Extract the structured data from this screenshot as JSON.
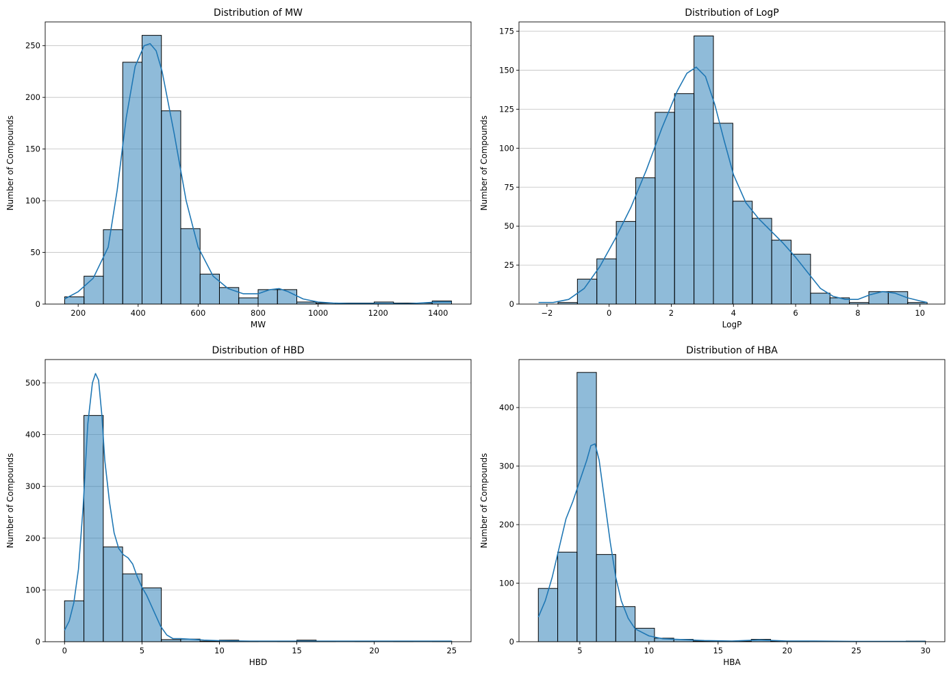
{
  "chart_data": [
    {
      "type": "bar",
      "title": "Distribution of MW",
      "xlabel": "MW",
      "ylabel": "Number of Compounds",
      "xlim": [
        90,
        1510
      ],
      "ylim": [
        0,
        273
      ],
      "xticks": [
        200,
        400,
        600,
        800,
        1000,
        1200,
        1400
      ],
      "yticks": [
        0,
        50,
        100,
        150,
        200,
        250
      ],
      "grid": "y",
      "bin_edges": [
        155,
        219.5,
        284,
        348.5,
        413,
        477.5,
        542,
        606.5,
        671,
        735.5,
        800,
        864.5,
        929,
        993.5,
        1058,
        1122.5,
        1187,
        1251.5,
        1316,
        1380.5,
        1445
      ],
      "counts": [
        7,
        27,
        72,
        234,
        260,
        187,
        73,
        29,
        16,
        6,
        14,
        14,
        2,
        1,
        1,
        1,
        2,
        1,
        1,
        3
      ],
      "kde": {
        "x": [
          155,
          200,
          250,
          300,
          330,
          360,
          390,
          420,
          440,
          460,
          480,
          520,
          560,
          600,
          650,
          700,
          750,
          800,
          840,
          870,
          900,
          950,
          1000,
          1050,
          1100,
          1200,
          1300,
          1400,
          1445
        ],
        "y": [
          5,
          12,
          25,
          55,
          110,
          180,
          230,
          250,
          252,
          245,
          225,
          165,
          100,
          55,
          27,
          15,
          10,
          10,
          14,
          15,
          12,
          5,
          2,
          1,
          0.5,
          0.5,
          0.3,
          2,
          2
        ]
      }
    },
    {
      "type": "bar",
      "title": "Distribution of LogP",
      "xlabel": "LogP",
      "ylabel": "Number of Compounds",
      "xlim": [
        -2.9,
        10.8
      ],
      "ylim": [
        0,
        181
      ],
      "xticks": [
        -2,
        0,
        2,
        4,
        6,
        8,
        10
      ],
      "yticks": [
        0,
        25,
        50,
        75,
        100,
        125,
        150,
        175
      ],
      "grid": "y",
      "bin_edges": [
        -2.27,
        -1.645,
        -1.02,
        -0.395,
        0.23,
        0.855,
        1.48,
        2.105,
        2.73,
        3.355,
        3.98,
        4.605,
        5.23,
        5.855,
        6.48,
        7.105,
        7.73,
        8.355,
        8.98,
        9.605,
        10.23
      ],
      "counts": [
        0,
        1,
        16,
        29,
        53,
        81,
        123,
        135,
        172,
        116,
        66,
        55,
        41,
        32,
        7,
        4,
        1,
        8,
        8,
        1
      ],
      "kde": {
        "x": [
          -2.27,
          -1.8,
          -1.3,
          -0.8,
          -0.3,
          0.2,
          0.7,
          1.2,
          1.7,
          2.2,
          2.5,
          2.8,
          3.1,
          3.4,
          3.7,
          4.0,
          4.4,
          4.8,
          5.2,
          5.6,
          6.0,
          6.4,
          6.8,
          7.2,
          7.6,
          8.0,
          8.4,
          8.8,
          9.2,
          9.6,
          10.0,
          10.23
        ],
        "y": [
          1,
          1,
          3,
          10,
          24,
          42,
          62,
          86,
          113,
          137,
          148,
          152,
          146,
          128,
          105,
          83,
          65,
          55,
          47,
          39,
          30,
          20,
          10,
          5,
          3,
          3,
          6,
          8,
          7,
          4,
          2,
          1
        ]
      }
    },
    {
      "type": "bar",
      "title": "Distribution of HBD",
      "xlabel": "HBD",
      "ylabel": "Number of Compounds",
      "xlim": [
        -1.25,
        26.25
      ],
      "ylim": [
        0,
        545
      ],
      "xticks": [
        0,
        5,
        10,
        15,
        20,
        25
      ],
      "yticks": [
        0,
        100,
        200,
        300,
        400,
        500
      ],
      "grid": "y",
      "bin_edges": [
        0,
        1.25,
        2.5,
        3.75,
        5,
        6.25,
        7.5,
        8.75,
        10,
        11.25,
        12.5,
        13.75,
        15,
        16.25,
        17.5,
        18.75,
        20,
        21.25,
        22.5,
        23.75,
        25
      ],
      "counts": [
        79,
        437,
        183,
        131,
        104,
        4,
        5,
        1,
        3,
        1,
        0,
        1,
        3,
        1,
        0,
        1,
        0,
        1,
        0,
        1
      ],
      "kde": {
        "x": [
          0,
          0.3,
          0.6,
          0.9,
          1.2,
          1.5,
          1.8,
          2.0,
          2.2,
          2.4,
          2.6,
          2.9,
          3.2,
          3.5,
          3.8,
          4.1,
          4.4,
          4.7,
          5.0,
          5.3,
          5.6,
          5.9,
          6.2,
          6.6,
          7.0,
          7.5,
          8.0,
          9.0,
          10,
          12,
          15,
          20,
          25
        ],
        "y": [
          22,
          40,
          75,
          140,
          260,
          420,
          500,
          518,
          505,
          440,
          350,
          270,
          210,
          180,
          168,
          162,
          150,
          125,
          105,
          90,
          70,
          50,
          30,
          13,
          6,
          6,
          5,
          3,
          2,
          1,
          1,
          1,
          1
        ]
      }
    },
    {
      "type": "bar",
      "title": "Distribution of HBA",
      "xlabel": "HBA",
      "ylabel": "Number of Compounds",
      "xlim": [
        0.6,
        31.4
      ],
      "ylim": [
        0,
        482
      ],
      "xticks": [
        5,
        10,
        15,
        20,
        25,
        30
      ],
      "yticks": [
        0,
        100,
        200,
        300,
        400
      ],
      "grid": "y",
      "bin_edges": [
        2,
        3.4,
        4.8,
        6.2,
        7.6,
        9,
        10.4,
        11.8,
        13.2,
        14.6,
        16,
        17.4,
        18.8,
        20.2,
        21.6,
        23,
        24.4,
        25.8,
        27.2,
        28.6,
        30
      ],
      "counts": [
        91,
        153,
        460,
        149,
        60,
        23,
        6,
        4,
        1,
        1,
        1,
        4,
        1,
        1,
        0,
        0,
        0,
        0,
        0,
        1
      ],
      "kde": {
        "x": [
          2,
          2.5,
          3,
          3.5,
          4,
          4.5,
          5,
          5.5,
          5.8,
          6.1,
          6.4,
          6.8,
          7.2,
          7.6,
          8,
          8.5,
          9,
          10,
          11,
          12,
          14,
          16,
          18,
          20,
          22,
          25,
          30
        ],
        "y": [
          42,
          70,
          110,
          160,
          210,
          240,
          275,
          310,
          335,
          338,
          310,
          240,
          170,
          110,
          70,
          40,
          22,
          10,
          5,
          4,
          2,
          1,
          3,
          1,
          1,
          0.5,
          0.5
        ]
      }
    }
  ]
}
